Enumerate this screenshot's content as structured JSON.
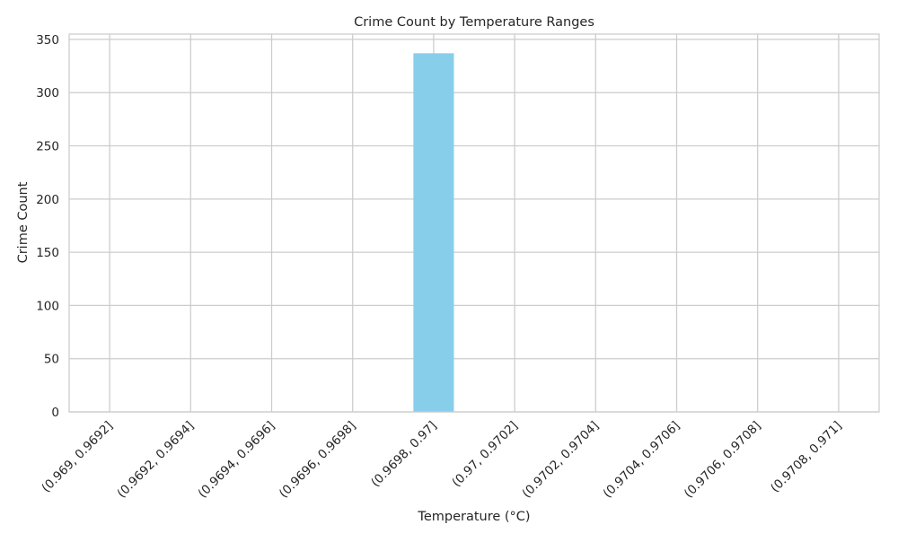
{
  "chart_data": {
    "type": "bar",
    "title": "Crime Count by Temperature Ranges",
    "xlabel": "Temperature (°C)",
    "ylabel": "Crime Count",
    "categories": [
      "(0.969, 0.9692]",
      "(0.9692, 0.9694]",
      "(0.9694, 0.9696]",
      "(0.9696, 0.9698]",
      "(0.9698, 0.97]",
      "(0.97, 0.9702]",
      "(0.9702, 0.9704]",
      "(0.9704, 0.9706]",
      "(0.9706, 0.9708]",
      "(0.9708, 0.971]"
    ],
    "values": [
      0,
      0,
      0,
      0,
      337,
      0,
      0,
      0,
      0,
      0
    ],
    "ylim": [
      0,
      355
    ],
    "yticks": [
      0,
      50,
      100,
      150,
      200,
      250,
      300,
      350
    ],
    "grid": true,
    "bar_color": "#87CEEB",
    "grid_color": "#cccccc",
    "axis_color": "#cccccc",
    "text_color": "#262626"
  }
}
